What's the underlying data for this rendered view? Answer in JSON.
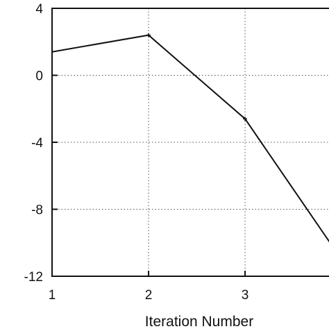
{
  "chart_data": {
    "type": "line",
    "xlabel": "Iteration Number",
    "ylabel": "",
    "xlim": [
      1,
      3.87
    ],
    "ylim": [
      -12,
      4
    ],
    "xticks": [
      1,
      2,
      3
    ],
    "yticks": [
      4,
      0,
      -4,
      -8,
      -12
    ],
    "grid": true,
    "series": [
      {
        "x": [
          1,
          2,
          3,
          4
        ],
        "y": [
          1.4,
          2.4,
          -2.6,
          -11.0
        ],
        "color": "#111111"
      }
    ]
  }
}
